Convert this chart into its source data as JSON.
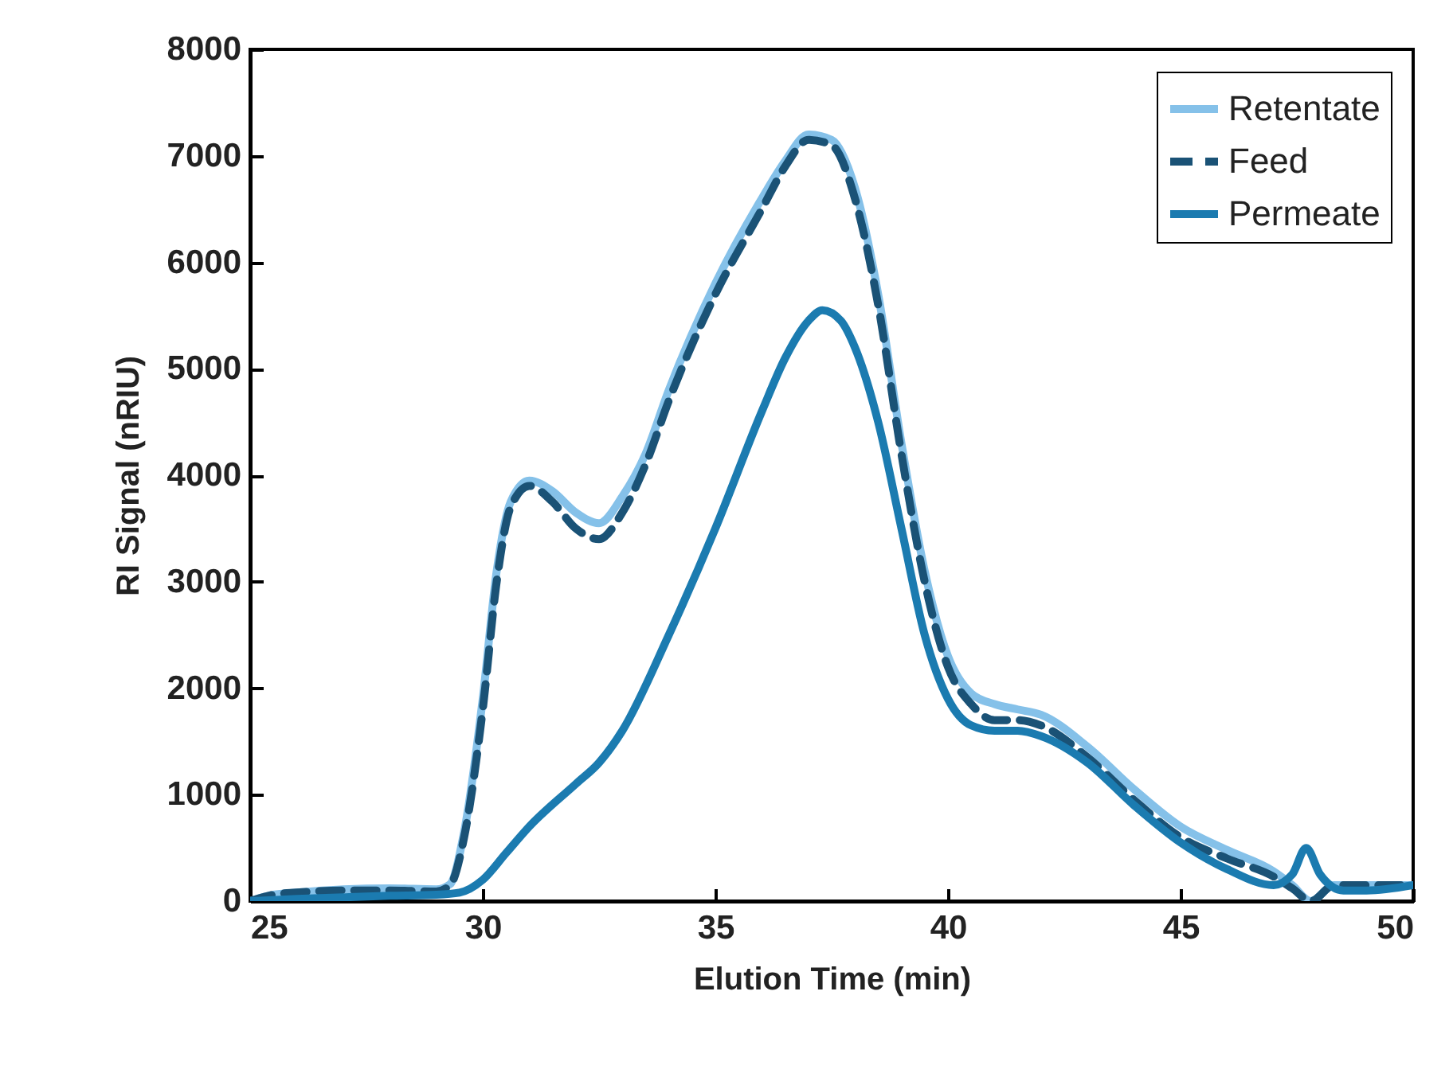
{
  "chart_data": {
    "type": "line",
    "xlabel": "Elution Time (min)",
    "ylabel": "RI Signal (nRIU)",
    "xlim": [
      25,
      50
    ],
    "xticks": [
      25,
      30,
      35,
      40,
      45,
      50
    ],
    "ylim": [
      0,
      8000
    ],
    "yticks": [
      0,
      1000,
      2000,
      3000,
      4000,
      5000,
      6000,
      7000,
      8000
    ],
    "legend": "top right",
    "grid": false,
    "series": [
      {
        "name": "Retentate",
        "color": "#85c1e9",
        "line_style": "solid",
        "x": [
          25,
          25.5,
          26,
          27,
          28,
          29,
          29.3,
          29.6,
          30,
          30.3,
          30.6,
          31,
          31.5,
          32,
          32.5,
          33,
          33.5,
          34,
          35,
          36,
          36.5,
          37,
          37.5,
          38,
          38.5,
          39,
          39.5,
          40,
          40.5,
          41,
          41.5,
          42,
          43,
          44,
          45,
          46,
          47,
          47.4,
          47.8,
          48.3,
          49,
          50
        ],
        "values": [
          0,
          60,
          80,
          110,
          120,
          110,
          160,
          650,
          1900,
          3100,
          3750,
          3950,
          3850,
          3650,
          3550,
          3800,
          4200,
          4800,
          5800,
          6600,
          6950,
          7200,
          7150,
          6700,
          5700,
          4300,
          3100,
          2300,
          1950,
          1850,
          1800,
          1750,
          1450,
          1050,
          700,
          480,
          280,
          150,
          0,
          150,
          150,
          150
        ]
      },
      {
        "name": "Feed",
        "color": "#1a5276",
        "line_style": "dashed",
        "x": [
          25,
          25.5,
          26,
          27,
          28,
          29,
          29.3,
          29.6,
          30,
          30.3,
          30.6,
          31,
          31.5,
          32,
          32.5,
          33,
          33.5,
          34,
          35,
          36,
          36.5,
          37,
          37.5,
          38,
          38.5,
          39,
          39.5,
          40,
          40.5,
          41,
          41.5,
          42,
          43,
          44,
          45,
          46,
          47,
          47.4,
          47.8,
          48.3,
          49,
          50
        ],
        "values": [
          0,
          60,
          80,
          100,
          100,
          90,
          150,
          600,
          1800,
          3000,
          3700,
          3900,
          3750,
          3500,
          3400,
          3650,
          4100,
          4700,
          5700,
          6500,
          6900,
          7150,
          7100,
          6600,
          5600,
          4200,
          3000,
          2200,
          1850,
          1700,
          1700,
          1650,
          1350,
          950,
          600,
          400,
          230,
          120,
          0,
          150,
          150,
          150
        ]
      },
      {
        "name": "Permeate",
        "color": "#1b7bb0",
        "line_style": "solid",
        "x": [
          25,
          26,
          28,
          29,
          29.5,
          30,
          30.5,
          31,
          32,
          32.5,
          33,
          34,
          35,
          36,
          36.5,
          37,
          37.3,
          37.7,
          38,
          38.5,
          39,
          39.5,
          40,
          40.5,
          41,
          41.5,
          42,
          43,
          44,
          45,
          46,
          47,
          47.4,
          47.7,
          48,
          48.5,
          49,
          50
        ],
        "values": [
          0,
          20,
          50,
          60,
          80,
          200,
          450,
          700,
          1100,
          1300,
          1600,
          2500,
          3500,
          4600,
          5100,
          5450,
          5550,
          5450,
          5200,
          4500,
          3500,
          2500,
          1900,
          1650,
          1600,
          1600,
          1550,
          1300,
          900,
          550,
          300,
          150,
          250,
          500,
          250,
          100,
          100,
          150
        ]
      }
    ]
  }
}
